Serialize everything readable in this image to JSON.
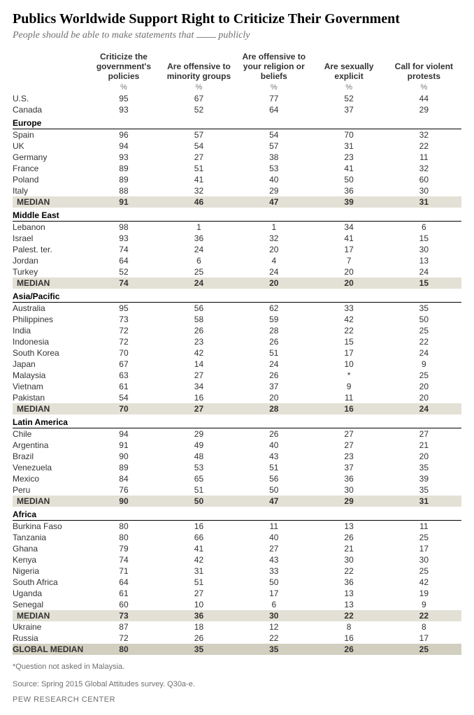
{
  "title": "Publics Worldwide Support Right to Criticize Their Government",
  "subtitle_prefix": "People should be able to make statements that ",
  "subtitle_suffix": " publicly",
  "pct_symbol": "%",
  "columns": [
    "Criticize the government's policies",
    "Are offensive to minority groups",
    "Are offensive to your religion or beliefs",
    "Are sexually explicit",
    "Call for violent protests"
  ],
  "top_rows": [
    {
      "name": "U.S.",
      "v": [
        "95",
        "67",
        "77",
        "52",
        "44"
      ]
    },
    {
      "name": "Canada",
      "v": [
        "93",
        "52",
        "64",
        "37",
        "29"
      ]
    }
  ],
  "regions": [
    {
      "name": "Europe",
      "rows": [
        {
          "name": "Spain",
          "v": [
            "96",
            "57",
            "54",
            "70",
            "32"
          ]
        },
        {
          "name": "UK",
          "v": [
            "94",
            "54",
            "57",
            "31",
            "22"
          ]
        },
        {
          "name": "Germany",
          "v": [
            "93",
            "27",
            "38",
            "23",
            "11"
          ]
        },
        {
          "name": "France",
          "v": [
            "89",
            "51",
            "53",
            "41",
            "32"
          ]
        },
        {
          "name": "Poland",
          "v": [
            "89",
            "41",
            "40",
            "50",
            "60"
          ]
        },
        {
          "name": "Italy",
          "v": [
            "88",
            "32",
            "29",
            "36",
            "30"
          ]
        }
      ],
      "median": [
        "91",
        "46",
        "47",
        "39",
        "31"
      ]
    },
    {
      "name": "Middle East",
      "rows": [
        {
          "name": "Lebanon",
          "v": [
            "98",
            "1",
            "1",
            "34",
            "6"
          ]
        },
        {
          "name": "Israel",
          "v": [
            "93",
            "36",
            "32",
            "41",
            "15"
          ]
        },
        {
          "name": "Palest. ter.",
          "v": [
            "74",
            "24",
            "20",
            "17",
            "30"
          ]
        },
        {
          "name": "Jordan",
          "v": [
            "64",
            "6",
            "4",
            "7",
            "13"
          ]
        },
        {
          "name": "Turkey",
          "v": [
            "52",
            "25",
            "24",
            "20",
            "24"
          ]
        }
      ],
      "median": [
        "74",
        "24",
        "20",
        "20",
        "15"
      ]
    },
    {
      "name": "Asia/Pacific",
      "rows": [
        {
          "name": "Australia",
          "v": [
            "95",
            "56",
            "62",
            "33",
            "35"
          ]
        },
        {
          "name": "Philippines",
          "v": [
            "73",
            "58",
            "59",
            "42",
            "50"
          ]
        },
        {
          "name": "India",
          "v": [
            "72",
            "26",
            "28",
            "22",
            "25"
          ]
        },
        {
          "name": "Indonesia",
          "v": [
            "72",
            "23",
            "26",
            "15",
            "22"
          ]
        },
        {
          "name": "South Korea",
          "v": [
            "70",
            "42",
            "51",
            "17",
            "24"
          ]
        },
        {
          "name": "Japan",
          "v": [
            "67",
            "14",
            "24",
            "10",
            "9"
          ]
        },
        {
          "name": "Malaysia",
          "v": [
            "63",
            "27",
            "26",
            "*",
            "25"
          ]
        },
        {
          "name": "Vietnam",
          "v": [
            "61",
            "34",
            "37",
            "9",
            "20"
          ]
        },
        {
          "name": "Pakistan",
          "v": [
            "54",
            "16",
            "20",
            "11",
            "20"
          ]
        }
      ],
      "median": [
        "70",
        "27",
        "28",
        "16",
        "24"
      ]
    },
    {
      "name": "Latin America",
      "rows": [
        {
          "name": "Chile",
          "v": [
            "94",
            "29",
            "26",
            "27",
            "27"
          ]
        },
        {
          "name": "Argentina",
          "v": [
            "91",
            "49",
            "40",
            "27",
            "21"
          ]
        },
        {
          "name": "Brazil",
          "v": [
            "90",
            "48",
            "43",
            "23",
            "20"
          ]
        },
        {
          "name": "Venezuela",
          "v": [
            "89",
            "53",
            "51",
            "37",
            "35"
          ]
        },
        {
          "name": "Mexico",
          "v": [
            "84",
            "65",
            "56",
            "36",
            "39"
          ]
        },
        {
          "name": "Peru",
          "v": [
            "76",
            "51",
            "50",
            "30",
            "35"
          ]
        }
      ],
      "median": [
        "90",
        "50",
        "47",
        "29",
        "31"
      ]
    },
    {
      "name": "Africa",
      "rows": [
        {
          "name": "Burkina Faso",
          "v": [
            "80",
            "16",
            "11",
            "13",
            "11"
          ]
        },
        {
          "name": "Tanzania",
          "v": [
            "80",
            "66",
            "40",
            "26",
            "25"
          ]
        },
        {
          "name": "Ghana",
          "v": [
            "79",
            "41",
            "27",
            "21",
            "17"
          ]
        },
        {
          "name": "Kenya",
          "v": [
            "74",
            "42",
            "43",
            "30",
            "30"
          ]
        },
        {
          "name": "Nigeria",
          "v": [
            "71",
            "31",
            "33",
            "22",
            "25"
          ]
        },
        {
          "name": "South Africa",
          "v": [
            "64",
            "51",
            "50",
            "36",
            "42"
          ]
        },
        {
          "name": "Uganda",
          "v": [
            "61",
            "27",
            "17",
            "13",
            "19"
          ]
        },
        {
          "name": "Senegal",
          "v": [
            "60",
            "10",
            "6",
            "13",
            "9"
          ]
        }
      ],
      "median": [
        "73",
        "36",
        "30",
        "22",
        "22"
      ]
    }
  ],
  "tail_rows": [
    {
      "name": "Ukraine",
      "v": [
        "87",
        "18",
        "12",
        "8",
        "8"
      ]
    },
    {
      "name": "Russia",
      "v": [
        "72",
        "26",
        "22",
        "16",
        "17"
      ]
    }
  ],
  "median_label": "MEDIAN",
  "global_label": "GLOBAL MEDIAN",
  "global_median": [
    "80",
    "35",
    "35",
    "26",
    "25"
  ],
  "footnote": "*Question not asked in Malaysia.",
  "source": "Source: Spring 2015 Global Attitudes survey. Q30a-e.",
  "brand": "PEW RESEARCH CENTER",
  "colors": {
    "median_bg": "#e3e0d5",
    "global_bg": "#d2cfc0",
    "text": "#333333",
    "muted": "#6f6f6f"
  }
}
